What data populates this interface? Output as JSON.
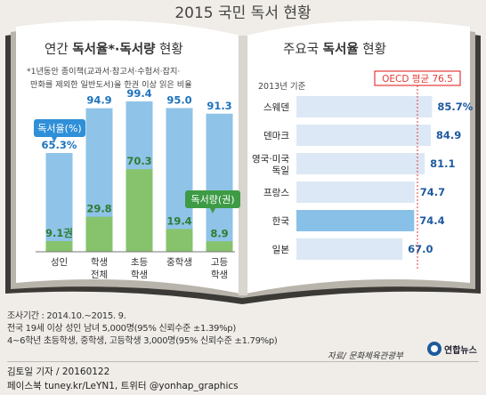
{
  "title": "2015 국민 독서 현황",
  "left_panel": {
    "title_prefix": "연간 ",
    "title_bold": "독서율*·독서량",
    "title_suffix": " 현황",
    "note_line1": "*1년동안 종이책(교과서·참고서·수험서·잡지·",
    "note_line2": "만화를 제외한 일반도서)을 한권 이상 읽은 비율",
    "legend_rate": "독서율(%)",
    "legend_amount": "독서량(권)"
  },
  "right_panel": {
    "title_prefix": "주요국 ",
    "title_bold": "독서율",
    "title_suffix": " 현황",
    "year_label": "2013년 기준",
    "oecd_label": "OECD 평균 76.5"
  },
  "chart_data": [
    {
      "type": "bar",
      "title": "연간 독서율*·독서량 현황",
      "categories": [
        [
          "성인"
        ],
        [
          "학생",
          "전체"
        ],
        [
          "초등",
          "학생"
        ],
        [
          "중학생"
        ],
        [
          "고등",
          "학생"
        ]
      ],
      "series": [
        {
          "name": "독서율(%)",
          "values": [
            65.3,
            94.9,
            99.4,
            95.0,
            91.3
          ],
          "labels": [
            "65.3%",
            "94.9",
            "99.4",
            "95.0",
            "91.3"
          ]
        },
        {
          "name": "독서량(권)",
          "values": [
            9.1,
            29.8,
            70.3,
            19.4,
            8.9
          ],
          "labels": [
            "9.1권",
            "29.8",
            "70.3",
            "19.4",
            "8.9"
          ]
        }
      ],
      "colors": {
        "rate_bar": "#8fc3e8",
        "rate_text": "#1e73be",
        "amount_bar": "#86c36c",
        "amount_text": "#2e7d32"
      }
    },
    {
      "type": "bar",
      "orientation": "horizontal",
      "title": "주요국 독서율 현황",
      "categories": [
        [
          "스웨덴"
        ],
        [
          "덴마크"
        ],
        [
          "영국·미국",
          "독일"
        ],
        [
          "프랑스"
        ],
        [
          "한국"
        ],
        [
          "일본"
        ]
      ],
      "values": [
        85.7,
        84.9,
        81.1,
        74.7,
        74.4,
        67.0
      ],
      "labels": [
        "85.7%",
        "84.9",
        "81.1",
        "74.7",
        "74.4",
        "67.0"
      ],
      "highlight": "한국",
      "reference_line": {
        "value": 76.5
      },
      "colors": {
        "bar": "#dce8f5",
        "highlight_bar": "#88c0e8",
        "text": "#1e5aa0",
        "reference": "#e53935"
      }
    }
  ],
  "footer": {
    "survey_line1": "조사기간 : 2014.10.~2015. 9.",
    "survey_line2": "전국 19세 이상 성인 남녀 5,000명(95% 신뢰수준 ±1.39%p)",
    "survey_line3": "4~6학년 초등학생, 중학생, 고등학생 3,000명(95% 신뢰수준 ±1.79%p)",
    "source": "자료/ 문화체육관광부",
    "logo_text": "연합뉴스",
    "reporter": "김토일 기자 / 20160122",
    "social": "페이스북 tuney.kr/LeYN1, 트위터 @yonhap_graphics"
  }
}
